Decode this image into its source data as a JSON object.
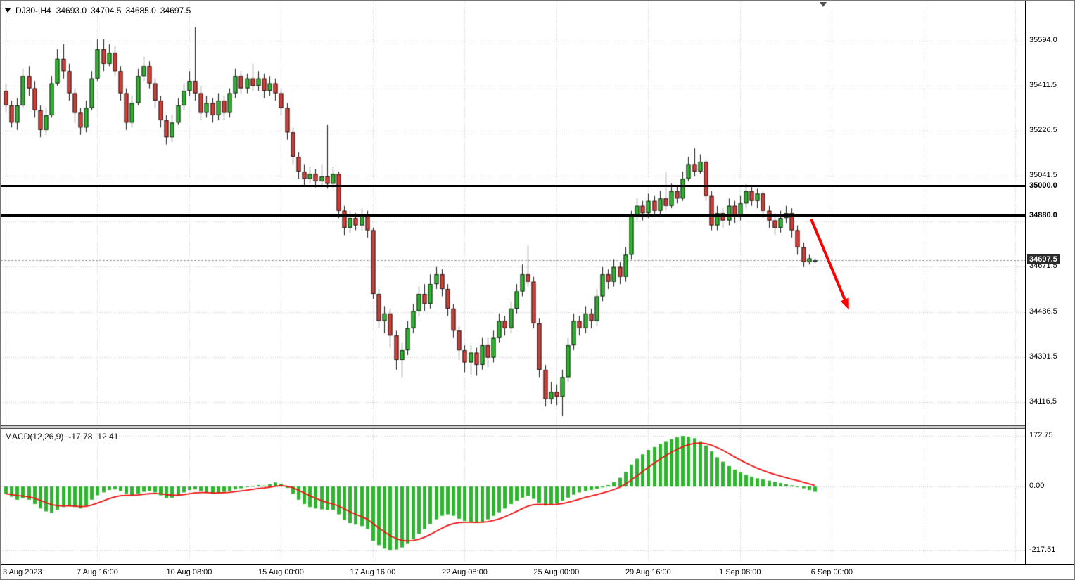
{
  "header": {
    "symbol_period": "DJ30-,H4",
    "open": "34693.0",
    "high": "34704.5",
    "low": "34685.0",
    "close": "34697.5"
  },
  "macd_panel": {
    "label": "MACD(12,26,9)",
    "value": "-17.78",
    "signal_value": "12.41"
  },
  "price_axis": {
    "labels": [
      {
        "text": "35594.0",
        "value": 35594.0
      },
      {
        "text": "35411.5",
        "value": 35411.5
      },
      {
        "text": "35226.5",
        "value": 35226.5
      },
      {
        "text": "35041.5",
        "value": 35041.5
      },
      {
        "text": "34671.5",
        "value": 34671.5
      },
      {
        "text": "34486.5",
        "value": 34486.5
      },
      {
        "text": "34301.5",
        "value": 34301.5
      },
      {
        "text": "34116.5",
        "value": 34116.5
      }
    ],
    "current": {
      "text": "34697.5",
      "value": 34697.5
    }
  },
  "macd_axis": {
    "labels": [
      {
        "text": "172.75",
        "value": 172.75
      },
      {
        "text": "0.00",
        "value": 0
      },
      {
        "text": "-217.51",
        "value": -217.51
      }
    ]
  },
  "time_axis": {
    "labels": [
      {
        "text": "3 Aug 2023",
        "bar": 0
      },
      {
        "text": "7 Aug 16:00",
        "bar": 16
      },
      {
        "text": "10 Aug 08:00",
        "bar": 32
      },
      {
        "text": "15 Aug 00:00",
        "bar": 48
      },
      {
        "text": "17 Aug 16:00",
        "bar": 64
      },
      {
        "text": "22 Aug 08:00",
        "bar": 80
      },
      {
        "text": "25 Aug 00:00",
        "bar": 96
      },
      {
        "text": "29 Aug 16:00",
        "bar": 112
      },
      {
        "text": "1 Sep 08:00",
        "bar": 128
      },
      {
        "text": "6 Sep 00:00",
        "bar": 144
      }
    ]
  },
  "chart_data": {
    "type": "candlestick",
    "symbol": "DJ30-",
    "timeframe": "H4",
    "title": "DJ30-,H4",
    "ylim_price": [
      34020,
      35735
    ],
    "ylim_macd": [
      -264,
      197
    ],
    "bars_per_gridline": 16,
    "grid_prices": [
      35594.0,
      35411.5,
      35226.5,
      35041.5,
      34856.5,
      34671.5,
      34486.5,
      34301.5,
      34116.5
    ],
    "macd_grid": [
      172.75,
      0,
      -217.51
    ],
    "levels": [
      {
        "price": 35000,
        "label": "35000.0"
      },
      {
        "price": 34880,
        "label": "34880.0"
      }
    ],
    "current_price": 34697.5,
    "arrow": {
      "from_bar": 140.5,
      "from_price": 34860,
      "to_bar": 147,
      "to_price": 34495
    },
    "candles": [
      [
        35390,
        35420,
        35300,
        35330
      ],
      [
        35330,
        35350,
        35240,
        35260
      ],
      [
        35260,
        35360,
        35230,
        35330
      ],
      [
        35330,
        35480,
        35320,
        35450
      ],
      [
        35450,
        35490,
        35370,
        35400
      ],
      [
        35400,
        35430,
        35280,
        35310
      ],
      [
        35310,
        35330,
        35200,
        35230
      ],
      [
        35230,
        35320,
        35210,
        35290
      ],
      [
        35290,
        35450,
        35280,
        35420
      ],
      [
        35420,
        35560,
        35410,
        35520
      ],
      [
        35520,
        35580,
        35440,
        35470
      ],
      [
        35470,
        35500,
        35350,
        35380
      ],
      [
        35380,
        35400,
        35260,
        35300
      ],
      [
        35300,
        35320,
        35210,
        35240
      ],
      [
        35240,
        35350,
        35220,
        35320
      ],
      [
        35320,
        35470,
        35310,
        35440
      ],
      [
        35440,
        35600,
        35430,
        35560
      ],
      [
        35560,
        35600,
        35470,
        35500
      ],
      [
        35500,
        35580,
        35490,
        35545
      ],
      [
        35545,
        35570,
        35450,
        35470
      ],
      [
        35470,
        35490,
        35350,
        35380
      ],
      [
        35380,
        35400,
        35230,
        35260
      ],
      [
        35260,
        35370,
        35240,
        35340
      ],
      [
        35340,
        35480,
        35330,
        35450
      ],
      [
        35450,
        35530,
        35430,
        35490
      ],
      [
        35490,
        35510,
        35400,
        35420
      ],
      [
        35420,
        35440,
        35320,
        35350
      ],
      [
        35350,
        35370,
        35240,
        35270
      ],
      [
        35270,
        35290,
        35170,
        35200
      ],
      [
        35200,
        35290,
        35180,
        35260
      ],
      [
        35260,
        35360,
        35250,
        35330
      ],
      [
        35330,
        35420,
        35310,
        35390
      ],
      [
        35390,
        35470,
        35370,
        35430
      ],
      [
        35430,
        35650,
        35350,
        35380
      ],
      [
        35380,
        35410,
        35270,
        35300
      ],
      [
        35300,
        35370,
        35280,
        35340
      ],
      [
        35340,
        35360,
        35260,
        35290
      ],
      [
        35290,
        35380,
        35270,
        35350
      ],
      [
        35350,
        35370,
        35270,
        35300
      ],
      [
        35300,
        35400,
        35280,
        35380
      ],
      [
        35380,
        35480,
        35360,
        35450
      ],
      [
        35450,
        35470,
        35380,
        35400
      ],
      [
        35400,
        35460,
        35380,
        35440
      ],
      [
        35440,
        35500,
        35390,
        35410
      ],
      [
        35410,
        35470,
        35390,
        35440
      ],
      [
        35440,
        35460,
        35360,
        35390
      ],
      [
        35390,
        35450,
        35370,
        35420
      ],
      [
        35420,
        35440,
        35350,
        35380
      ],
      [
        35380,
        35400,
        35290,
        35320
      ],
      [
        35320,
        35340,
        35190,
        35220
      ],
      [
        35220,
        35240,
        35090,
        35120
      ],
      [
        35120,
        35140,
        35030,
        35060
      ],
      [
        35060,
        35090,
        35000,
        35030
      ],
      [
        35030,
        35080,
        35010,
        35050
      ],
      [
        35050,
        35070,
        34995,
        35020
      ],
      [
        35020,
        35090,
        35000,
        35040
      ],
      [
        35040,
        35250,
        34990,
        35010
      ],
      [
        35010,
        35080,
        34990,
        35050
      ],
      [
        35050,
        35060,
        34870,
        34900
      ],
      [
        34900,
        34920,
        34800,
        34830
      ],
      [
        34830,
        34900,
        34810,
        34870
      ],
      [
        34870,
        34890,
        34820,
        34840
      ],
      [
        34840,
        34910,
        34820,
        34880
      ],
      [
        34880,
        34900,
        34790,
        34820
      ],
      [
        34820,
        34830,
        34540,
        34560
      ],
      [
        34560,
        34580,
        34420,
        34450
      ],
      [
        34450,
        34510,
        34400,
        34480
      ],
      [
        34480,
        34500,
        34340,
        34390
      ],
      [
        34390,
        34410,
        34250,
        34290
      ],
      [
        34290,
        34360,
        34220,
        34330
      ],
      [
        34330,
        34450,
        34310,
        34420
      ],
      [
        34420,
        34520,
        34400,
        34490
      ],
      [
        34490,
        34590,
        34470,
        34560
      ],
      [
        34560,
        34600,
        34490,
        34520
      ],
      [
        34520,
        34640,
        34500,
        34600
      ],
      [
        34600,
        34670,
        34580,
        34640
      ],
      [
        34640,
        34660,
        34550,
        34580
      ],
      [
        34580,
        34600,
        34470,
        34500
      ],
      [
        34500,
        34520,
        34380,
        34410
      ],
      [
        34410,
        34430,
        34290,
        34330
      ],
      [
        34330,
        34350,
        34240,
        34280
      ],
      [
        34280,
        34350,
        34230,
        34320
      ],
      [
        34320,
        34340,
        34225,
        34270
      ],
      [
        34270,
        34380,
        34250,
        34350
      ],
      [
        34350,
        34380,
        34260,
        34300
      ],
      [
        34300,
        34410,
        34280,
        34380
      ],
      [
        34380,
        34480,
        34360,
        34450
      ],
      [
        34450,
        34470,
        34390,
        34420
      ],
      [
        34420,
        34530,
        34400,
        34500
      ],
      [
        34500,
        34600,
        34480,
        34570
      ],
      [
        34570,
        34680,
        34550,
        34640
      ],
      [
        34640,
        34760,
        34590,
        34610
      ],
      [
        34610,
        34630,
        34420,
        34440
      ],
      [
        34440,
        34460,
        34220,
        34250
      ],
      [
        34250,
        34270,
        34100,
        34130
      ],
      [
        34130,
        34200,
        34110,
        34160
      ],
      [
        34160,
        34190,
        34105,
        34140
      ],
      [
        34140,
        34250,
        34060,
        34220
      ],
      [
        34220,
        34380,
        34200,
        34350
      ],
      [
        34350,
        34480,
        34330,
        34450
      ],
      [
        34450,
        34470,
        34390,
        34420
      ],
      [
        34420,
        34510,
        34400,
        34480
      ],
      [
        34480,
        34500,
        34420,
        34450
      ],
      [
        34450,
        34580,
        34430,
        34550
      ],
      [
        34550,
        34670,
        34530,
        34640
      ],
      [
        34640,
        34660,
        34580,
        34610
      ],
      [
        34610,
        34700,
        34590,
        34670
      ],
      [
        34670,
        34690,
        34600,
        34630
      ],
      [
        34630,
        34750,
        34610,
        34720
      ],
      [
        34720,
        34900,
        34700,
        34880
      ],
      [
        34880,
        34950,
        34860,
        34920
      ],
      [
        34920,
        34940,
        34860,
        34890
      ],
      [
        34890,
        34970,
        34870,
        34940
      ],
      [
        34940,
        34960,
        34880,
        34900
      ],
      [
        34900,
        34980,
        34880,
        34950
      ],
      [
        34950,
        35060,
        34900,
        34920
      ],
      [
        34920,
        35010,
        34910,
        34980
      ],
      [
        34980,
        35000,
        34930,
        34950
      ],
      [
        34950,
        35060,
        34940,
        35030
      ],
      [
        35030,
        35120,
        35020,
        35090
      ],
      [
        35090,
        35155,
        35040,
        35060
      ],
      [
        35060,
        35130,
        35050,
        35100
      ],
      [
        35100,
        35110,
        34940,
        34960
      ],
      [
        34960,
        34980,
        34820,
        34840
      ],
      [
        34840,
        34920,
        34820,
        34890
      ],
      [
        34890,
        34910,
        34830,
        34860
      ],
      [
        34860,
        34950,
        34840,
        34920
      ],
      [
        34920,
        34940,
        34850,
        34880
      ],
      [
        34880,
        34960,
        34860,
        34930
      ],
      [
        34930,
        35010,
        34910,
        34980
      ],
      [
        34980,
        35000,
        34920,
        34940
      ],
      [
        34940,
        34990,
        34910,
        34970
      ],
      [
        34970,
        34980,
        34870,
        34900
      ],
      [
        34900,
        34920,
        34830,
        34860
      ],
      [
        34860,
        34890,
        34800,
        34830
      ],
      [
        34830,
        34900,
        34810,
        34870
      ],
      [
        34870,
        34920,
        34850,
        34890
      ],
      [
        34890,
        34910,
        34790,
        34820
      ],
      [
        34820,
        34840,
        34720,
        34750
      ],
      [
        34750,
        34770,
        34670,
        34690
      ],
      [
        34690,
        34720,
        34680,
        34705
      ],
      [
        34693,
        34704.5,
        34685,
        34697.5
      ]
    ],
    "macd": {
      "params": "12,26,9",
      "signal_ema_period": 9,
      "last_value": -17.78,
      "last_signal": 12.41,
      "histogram": [
        -25,
        -35,
        -45,
        -40,
        -45,
        -60,
        -75,
        -85,
        -90,
        -80,
        -70,
        -65,
        -70,
        -75,
        -65,
        -45,
        -30,
        -20,
        -12,
        -10,
        -15,
        -25,
        -30,
        -25,
        -18,
        -15,
        -20,
        -30,
        -40,
        -38,
        -30,
        -20,
        -12,
        -10,
        -15,
        -22,
        -25,
        -22,
        -18,
        -15,
        -10,
        -6,
        -2,
        2,
        5,
        3,
        8,
        14,
        10,
        -5,
        -25,
        -45,
        -60,
        -70,
        -75,
        -78,
        -80,
        -80,
        -95,
        -115,
        -125,
        -130,
        -135,
        -145,
        -185,
        -200,
        -212,
        -217.51,
        -215,
        -208,
        -196,
        -180,
        -162,
        -145,
        -128,
        -112,
        -100,
        -95,
        -100,
        -110,
        -118,
        -122,
        -125,
        -120,
        -112,
        -100,
        -88,
        -75,
        -60,
        -48,
        -38,
        -32,
        -42,
        -55,
        -65,
        -62,
        -58,
        -48,
        -38,
        -28,
        -20,
        -15,
        -12,
        -8,
        -3,
        5,
        15,
        30,
        50,
        75,
        95,
        110,
        125,
        135,
        145,
        155,
        162,
        168,
        172.75,
        170,
        165,
        155,
        140,
        120,
        100,
        85,
        70,
        58,
        48,
        40,
        34,
        28,
        24,
        20,
        16,
        12,
        8,
        4,
        0,
        -6,
        -12,
        -17.78
      ]
    }
  },
  "colors": {
    "background": "#ffffff",
    "grid": "#c9c9c9",
    "bull": "#2eb52e",
    "bear": "#d23e38",
    "wick": "#1a1a1a",
    "candle_border": "#1f1f1f",
    "hline": "#000000",
    "arrow": "#ff0000",
    "macd_hist": "#2eb52e",
    "macd_signal": "#ee1111",
    "bid_line": "#9a9a9a"
  }
}
